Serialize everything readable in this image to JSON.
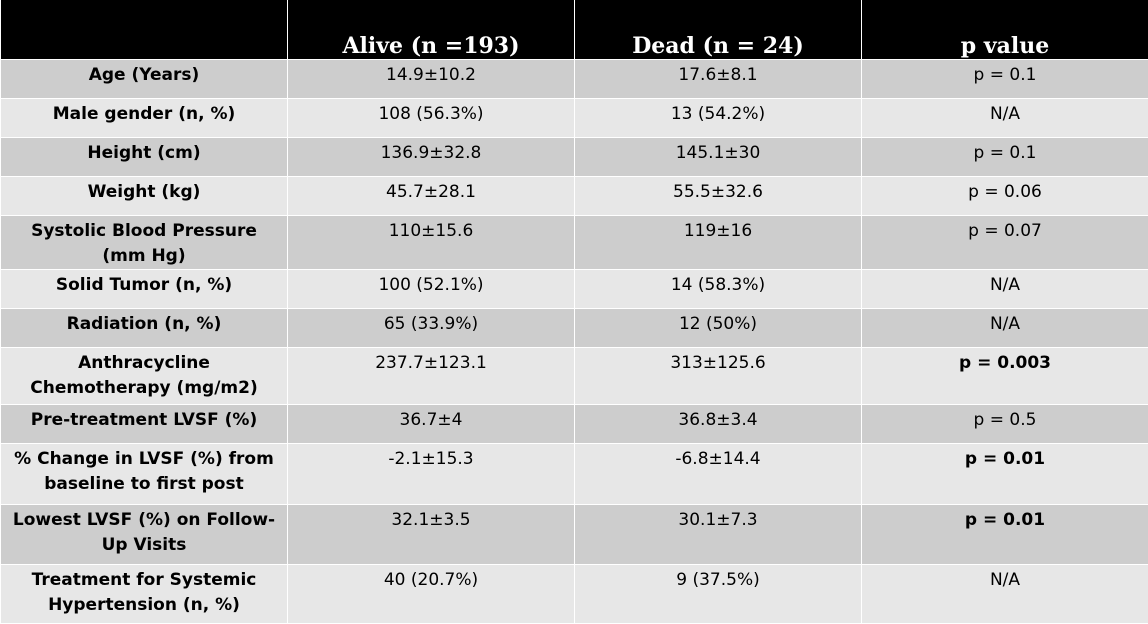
{
  "table": {
    "headers": [
      "",
      "Alive (n =193)",
      "Dead (n = 24)",
      "p value"
    ],
    "rows": [
      {
        "label": "Age (Years)",
        "alive": "14.9±10.2",
        "dead": "17.6±8.1",
        "p": "p = 0.1",
        "p_bold": false
      },
      {
        "label": "Male gender (n, %)",
        "alive": "108 (56.3%)",
        "dead": "13 (54.2%)",
        "p": "N/A",
        "p_bold": false
      },
      {
        "label": "Height (cm)",
        "alive": "136.9±32.8",
        "dead": "145.1±30",
        "p": "p = 0.1",
        "p_bold": false
      },
      {
        "label": "Weight (kg)",
        "alive": "45.7±28.1",
        "dead": "55.5±32.6",
        "p": "p = 0.06",
        "p_bold": false
      },
      {
        "label": "Systolic Blood Pressure    (mm Hg)",
        "alive": "110±15.6",
        "dead": "119±16",
        "p": "p = 0.07",
        "p_bold": false
      },
      {
        "label": "Solid Tumor (n, %)",
        "alive": "100 (52.1%)",
        "dead": "14 (58.3%)",
        "p": "N/A",
        "p_bold": false
      },
      {
        "label": "Radiation (n, %)",
        "alive": "65 (33.9%)",
        "dead": "12 (50%)",
        "p": "N/A",
        "p_bold": false
      },
      {
        "label": "Anthracycline Chemotherapy (mg/m2)",
        "alive": "237.7±123.1",
        "dead": "313±125.6",
        "p": "p = 0.003",
        "p_bold": true
      },
      {
        "label": "Pre-treatment LVSF (%)",
        "alive": "36.7±4",
        "dead": "36.8±3.4",
        "p": "p = 0.5",
        "p_bold": false
      },
      {
        "label": "% Change in LVSF (%) from baseline to first post",
        "alive": "-2.1±15.3",
        "dead": "-6.8±14.4",
        "p": "p = 0.01",
        "p_bold": true
      },
      {
        "label": "Lowest LVSF (%) on Follow-Up Visits",
        "alive": "32.1±3.5",
        "dead": "30.1±7.3",
        "p": "p = 0.01",
        "p_bold": true
      },
      {
        "label": "Treatment for Systemic Hypertension (n, %)",
        "alive": "40 (20.7%)",
        "dead": "9 (37.5%)",
        "p": "N/A",
        "p_bold": false
      }
    ]
  }
}
